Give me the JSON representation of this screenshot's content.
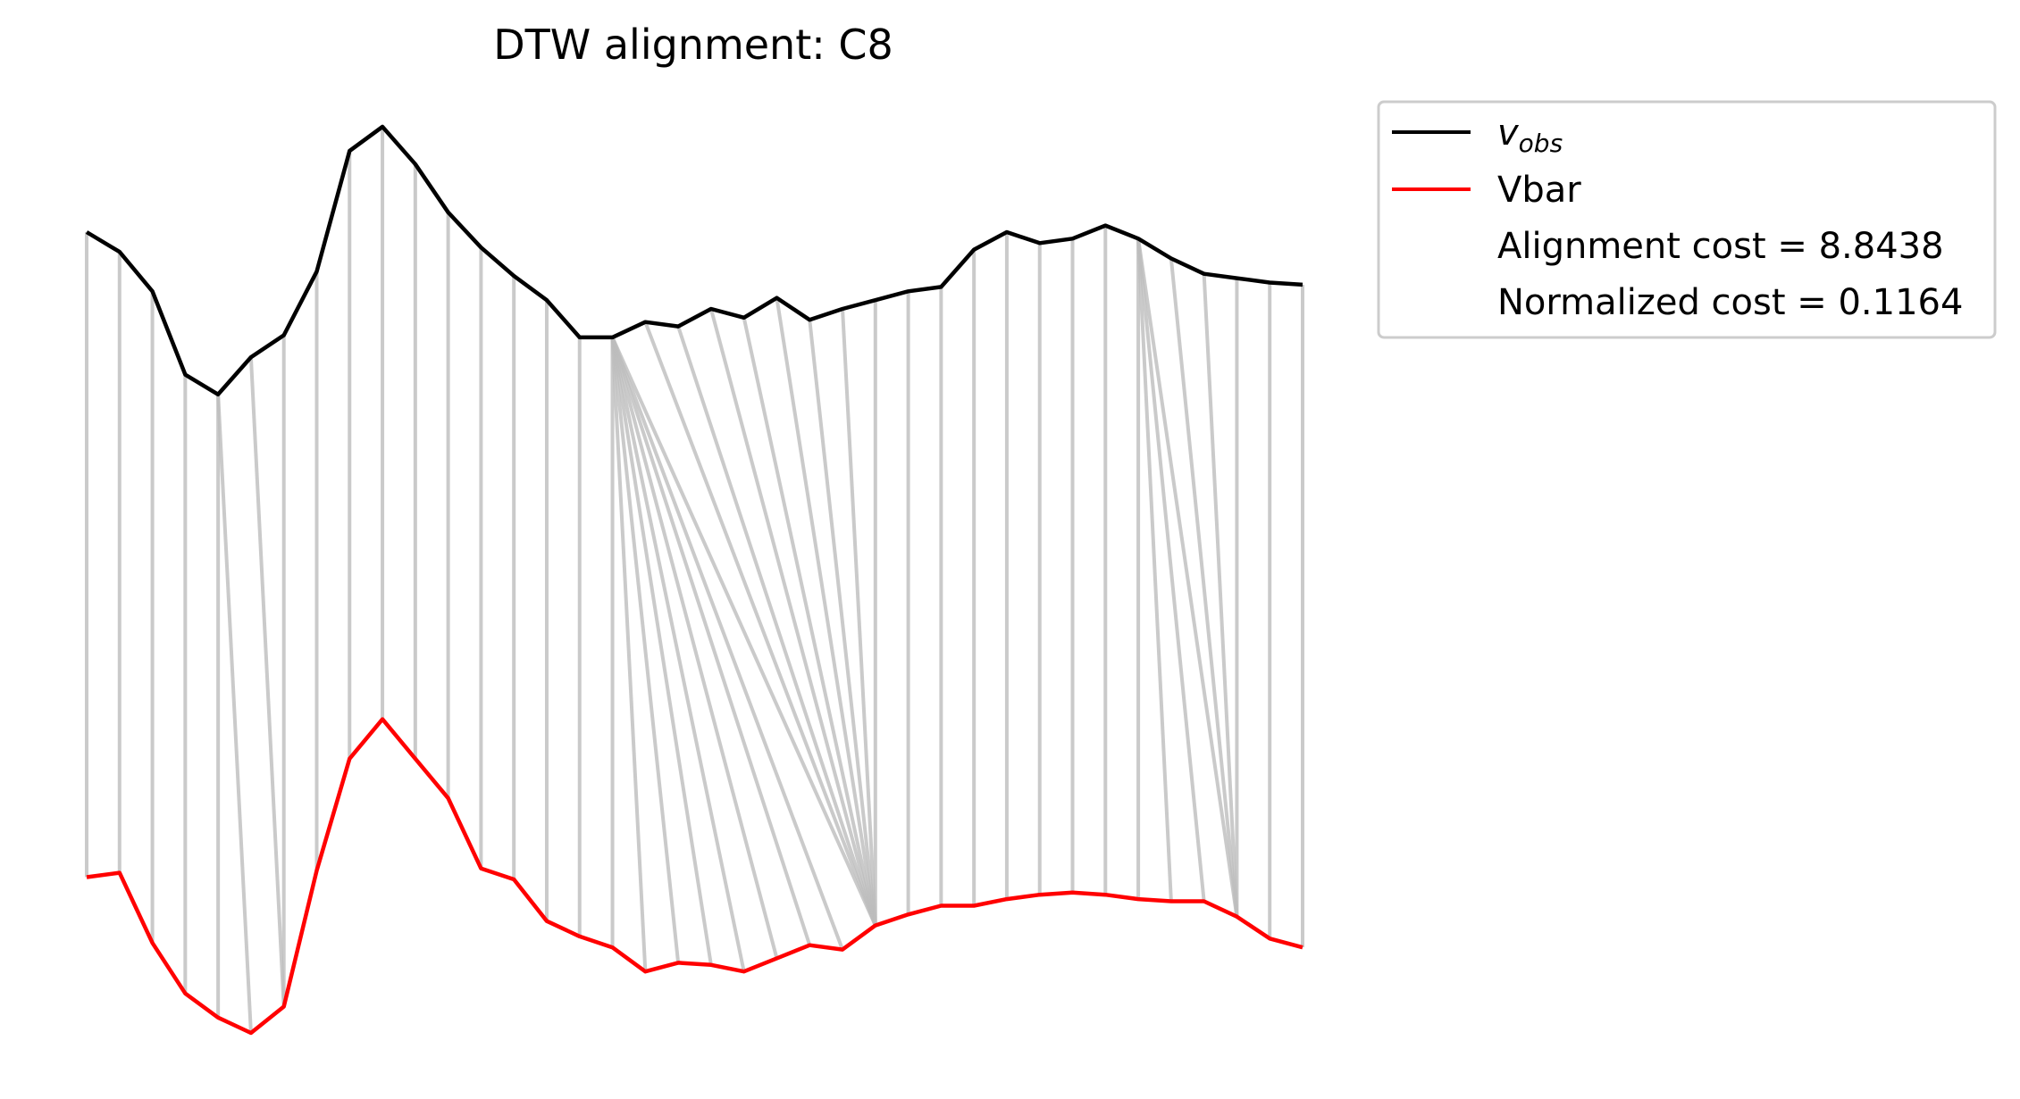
{
  "chart_data": {
    "type": "line",
    "title": "DTW alignment: C8",
    "x": [
      0,
      1,
      2,
      3,
      4,
      5,
      6,
      7,
      8,
      9,
      10,
      11,
      12,
      13,
      14,
      15,
      16,
      17,
      18,
      19,
      20,
      21,
      22,
      23,
      24,
      25,
      26,
      27,
      28,
      29,
      30,
      31,
      32,
      33,
      34,
      35,
      36,
      37
    ],
    "series": [
      {
        "name": "v",
        "name_subscript": "obs",
        "color": "#000000",
        "values": [
          0.6,
          0.51,
          0.33,
          -0.05,
          -0.14,
          0.03,
          0.13,
          0.42,
          0.97,
          1.08,
          0.91,
          0.69,
          0.53,
          0.4,
          0.29,
          0.12,
          0.12,
          0.19,
          0.17,
          0.25,
          0.21,
          0.3,
          0.2,
          0.25,
          0.29,
          0.33,
          0.35,
          0.52,
          0.6,
          0.55,
          0.57,
          0.63,
          0.57,
          0.48,
          0.41,
          0.39,
          0.37,
          0.36
        ]
      },
      {
        "name": "Vbar",
        "color": "#ff0000",
        "values": [
          -2.34,
          -2.32,
          -2.64,
          -2.87,
          -2.98,
          -3.05,
          -2.93,
          -2.31,
          -1.8,
          -1.62,
          -1.8,
          -1.98,
          -2.3,
          -2.35,
          -2.54,
          -2.61,
          -2.66,
          -2.77,
          -2.73,
          -2.74,
          -2.77,
          -2.71,
          -2.65,
          -2.67,
          -2.56,
          -2.51,
          -2.47,
          -2.47,
          -2.44,
          -2.42,
          -2.41,
          -2.42,
          -2.44,
          -2.45,
          -2.45,
          -2.52,
          -2.62,
          -2.66
        ]
      }
    ],
    "alignment_pairs": [
      [
        0,
        0
      ],
      [
        1,
        1
      ],
      [
        2,
        2
      ],
      [
        3,
        3
      ],
      [
        4,
        4
      ],
      [
        4,
        5
      ],
      [
        5,
        6
      ],
      [
        6,
        6
      ],
      [
        7,
        7
      ],
      [
        8,
        8
      ],
      [
        9,
        9
      ],
      [
        10,
        10
      ],
      [
        11,
        11
      ],
      [
        12,
        12
      ],
      [
        13,
        13
      ],
      [
        14,
        14
      ],
      [
        15,
        15
      ],
      [
        16,
        16
      ],
      [
        16,
        17
      ],
      [
        16,
        18
      ],
      [
        16,
        19
      ],
      [
        16,
        20
      ],
      [
        16,
        21
      ],
      [
        16,
        22
      ],
      [
        16,
        23
      ],
      [
        16,
        24
      ],
      [
        17,
        24
      ],
      [
        18,
        24
      ],
      [
        19,
        24
      ],
      [
        20,
        24
      ],
      [
        21,
        24
      ],
      [
        22,
        24
      ],
      [
        23,
        24
      ],
      [
        24,
        24
      ],
      [
        25,
        25
      ],
      [
        26,
        26
      ],
      [
        27,
        27
      ],
      [
        28,
        28
      ],
      [
        29,
        29
      ],
      [
        30,
        30
      ],
      [
        31,
        31
      ],
      [
        32,
        32
      ],
      [
        32,
        33
      ],
      [
        32,
        34
      ],
      [
        32,
        35
      ],
      [
        33,
        35
      ],
      [
        34,
        35
      ],
      [
        35,
        35
      ],
      [
        36,
        36
      ],
      [
        37,
        37
      ]
    ],
    "legend": {
      "placement": "outside-top-right",
      "entries": [
        "Alignment cost = 8.8438",
        "Normalized cost = 0.1164"
      ]
    },
    "axis": "off",
    "grid": false,
    "alignment_line_color": "#bdbdbd"
  }
}
